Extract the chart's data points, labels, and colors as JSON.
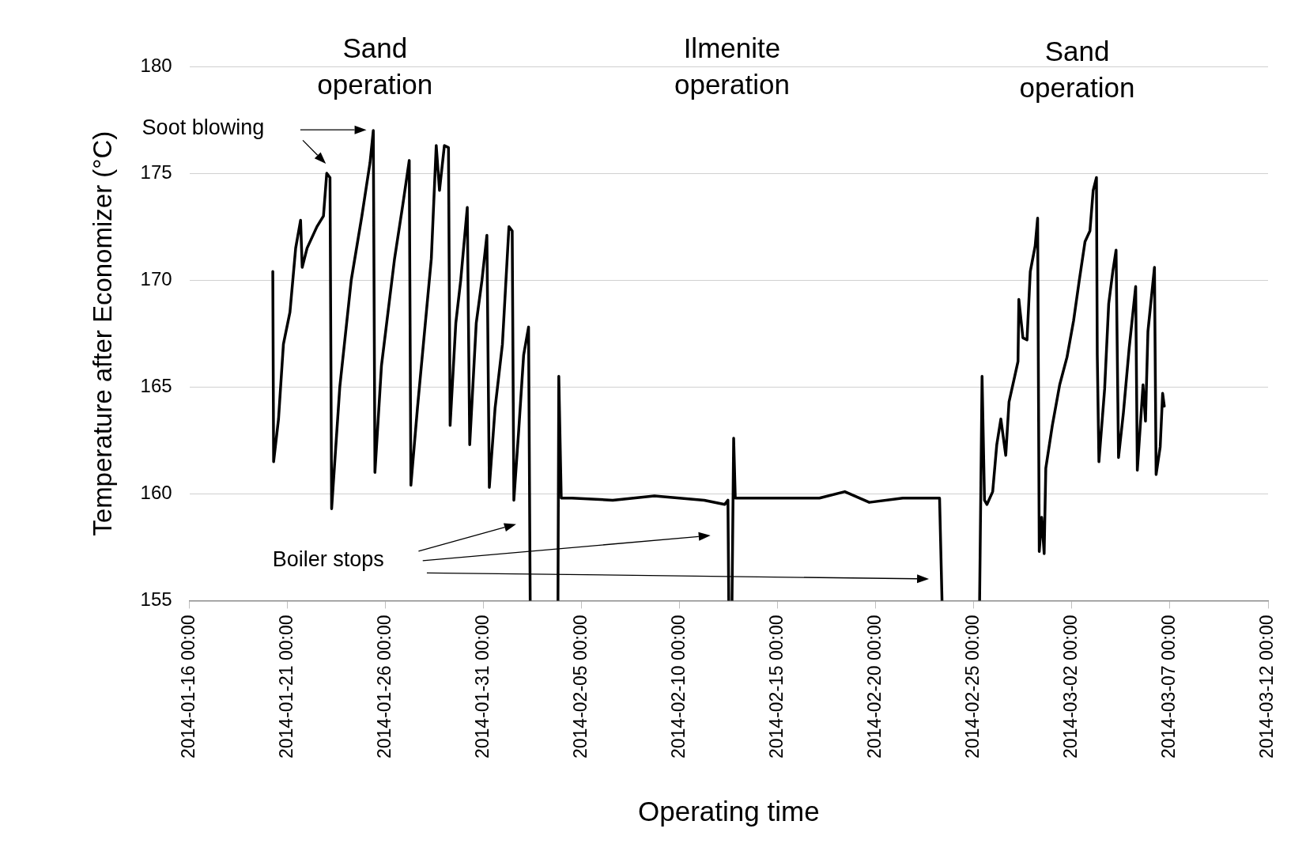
{
  "chart_data": {
    "type": "line",
    "xlabel": "Operating time",
    "ylabel": "Temperature after Economizer (°C)",
    "xlim": [
      "2014-01-16",
      "2014-03-12"
    ],
    "xticks": [
      {
        "value": "2014-01-16",
        "label": "2014-01-16 00:00"
      },
      {
        "value": "2014-01-21",
        "label": "2014-01-21 00:00"
      },
      {
        "value": "2014-01-26",
        "label": "2014-01-26 00:00"
      },
      {
        "value": "2014-01-31",
        "label": "2014-01-31 00:00"
      },
      {
        "value": "2014-02-05",
        "label": "2014-02-05 00:00"
      },
      {
        "value": "2014-02-10",
        "label": "2014-02-10 00:00"
      },
      {
        "value": "2014-02-15",
        "label": "2014-02-15 00:00"
      },
      {
        "value": "2014-02-20",
        "label": "2014-02-20 00:00"
      },
      {
        "value": "2014-02-25",
        "label": "2014-02-25 00:00"
      },
      {
        "value": "2014-03-02",
        "label": "2014-03-02 00:00"
      },
      {
        "value": "2014-03-07",
        "label": "2014-03-07 00:00"
      },
      {
        "value": "2014-03-12",
        "label": "2014-03-12 00:00"
      }
    ],
    "ylim": [
      155,
      180
    ],
    "yticks": [
      155,
      160,
      165,
      170,
      175,
      180
    ],
    "grid": "y",
    "legend": false,
    "marker": "none",
    "line_style": "solid",
    "series": [
      {
        "color": "#000000",
        "x": [
          "2014-01-20T06:00",
          "2014-01-20T07:00",
          "2014-01-20T13:00",
          "2014-01-20T19:00",
          "2014-01-21T03:00",
          "2014-01-21T10:00",
          "2014-01-21T16:00",
          "2014-01-21T18:00",
          "2014-01-22T00:00",
          "2014-01-22T12:00",
          "2014-01-22T20:00",
          "2014-01-23T00:00",
          "2014-01-23T04:00",
          "2014-01-23T06:00",
          "2014-01-23T16:00",
          "2014-01-24T06:00",
          "2014-01-24T19:00",
          "2014-01-25T05:00",
          "2014-01-25T09:00",
          "2014-01-25T11:00",
          "2014-01-25T19:00",
          "2014-01-26T11:00",
          "2014-01-26T21:00",
          "2014-01-27T05:00",
          "2014-01-27T07:00",
          "2014-01-27T15:00",
          "2014-01-28T08:00",
          "2014-01-28T14:00",
          "2014-01-28T18:00",
          "2014-01-29T00:00",
          "2014-01-29T05:00",
          "2014-01-29T07:00",
          "2014-01-29T14:00",
          "2014-01-29T20:00",
          "2014-01-30T04:00",
          "2014-01-30T07:00",
          "2014-01-30T15:00",
          "2014-01-30T22:00",
          "2014-01-31T04:00",
          "2014-01-31T07:00",
          "2014-01-31T14:00",
          "2014-01-31T23:00",
          "2014-02-01T07:00",
          "2014-02-01T11:00",
          "2014-02-01T13:00",
          "2014-02-01T19:00",
          "2014-02-02T01:00",
          "2014-02-02T07:00",
          "2014-02-02T09:00",
          "2014-02-03T00:00",
          "2014-02-03T19:00",
          "2014-02-03T20:00",
          "2014-02-03T23:00",
          "2014-02-04T12:00",
          "2014-02-06T14:00",
          "2014-02-08T17:00",
          "2014-02-11T06:00",
          "2014-02-12T07:00",
          "2014-02-12T11:00",
          "2014-02-12T12:00",
          "2014-02-12T14:00",
          "2014-02-12T16:00",
          "2014-02-12T18:00",
          "2014-02-12T20:00",
          "2014-02-14T05:00",
          "2014-02-17T03:00",
          "2014-02-18T10:00",
          "2014-02-19T16:00",
          "2014-02-21T09:00",
          "2014-02-23T06:00",
          "2014-02-23T09:00",
          "2014-02-24T00:00",
          "2014-02-25T07:00",
          "2014-02-25T10:00",
          "2014-02-25T13:00",
          "2014-02-25T16:00",
          "2014-02-25T23:00",
          "2014-02-26T04:00",
          "2014-02-26T09:00",
          "2014-02-26T15:00",
          "2014-02-26T19:00",
          "2014-02-27T02:00",
          "2014-02-27T06:00",
          "2014-02-27T07:00",
          "2014-02-27T12:00",
          "2014-02-27T17:00",
          "2014-02-27T21:00",
          "2014-02-28T03:00",
          "2014-02-28T06:00",
          "2014-02-28T07:00",
          "2014-02-28T08:00",
          "2014-02-28T11:00",
          "2014-02-28T14:00",
          "2014-02-28T16:00",
          "2014-03-01T00:00",
          "2014-03-01T09:00",
          "2014-03-01T18:00",
          "2014-03-02T02:00",
          "2014-03-02T09:00",
          "2014-03-02T16:00",
          "2014-03-02T22:00",
          "2014-03-03T02:00",
          "2014-03-03T06:00",
          "2014-03-03T07:00",
          "2014-03-03T09:00",
          "2014-03-03T16:00",
          "2014-03-03T21:00",
          "2014-03-04T02:00",
          "2014-03-04T06:00",
          "2014-03-04T09:00",
          "2014-03-04T15:00",
          "2014-03-04T22:00",
          "2014-03-05T06:00",
          "2014-03-05T08:00",
          "2014-03-05T15:00",
          "2014-03-05T18:00",
          "2014-03-05T21:00",
          "2014-03-06T05:00",
          "2014-03-06T07:00",
          "2014-03-06T12:00",
          "2014-03-06T15:00",
          "2014-03-06T17:00"
        ],
        "values": [
          170.4,
          161.5,
          163.5,
          167,
          168.5,
          171.5,
          172.8,
          170.6,
          171.5,
          172.5,
          173,
          175,
          174.8,
          159.3,
          165,
          170,
          173,
          175.5,
          177,
          161,
          166,
          171,
          173.5,
          175.6,
          160.4,
          164,
          171,
          176.3,
          174.2,
          176.3,
          176.2,
          163.2,
          168,
          170,
          173.4,
          162.3,
          168,
          170,
          172.1,
          160.3,
          164,
          167,
          172.5,
          172.3,
          159.7,
          163,
          166.5,
          167.8,
          155,
          null,
          155,
          165.5,
          159.8,
          159.8,
          159.7,
          159.9,
          159.7,
          159.5,
          159.7,
          155,
          null,
          155,
          162.6,
          159.8,
          159.8,
          159.8,
          160.1,
          159.6,
          159.8,
          159.8,
          155,
          null,
          155,
          165.5,
          159.7,
          159.5,
          160.1,
          162.3,
          163.5,
          161.8,
          164.3,
          165.5,
          166.2,
          169.1,
          167.3,
          167.2,
          170.4,
          171.6,
          172.9,
          165.1,
          157.3,
          158.9,
          157.2,
          161.2,
          163.2,
          165.1,
          166.4,
          168.1,
          170,
          171.8,
          172.3,
          174.2,
          174.8,
          166.5,
          161.5,
          164.9,
          168.9,
          170.4,
          171.4,
          161.7,
          163.8,
          166.8,
          169.7,
          161.1,
          165.1,
          163.4,
          167.6,
          170.6,
          160.9,
          162.2,
          164.7,
          164.1
        ]
      }
    ],
    "annotations": [
      "Sand\noperation",
      "Ilmenite\noperation",
      "Sand\noperation",
      "Soot blowing",
      "Boiler stops"
    ]
  }
}
